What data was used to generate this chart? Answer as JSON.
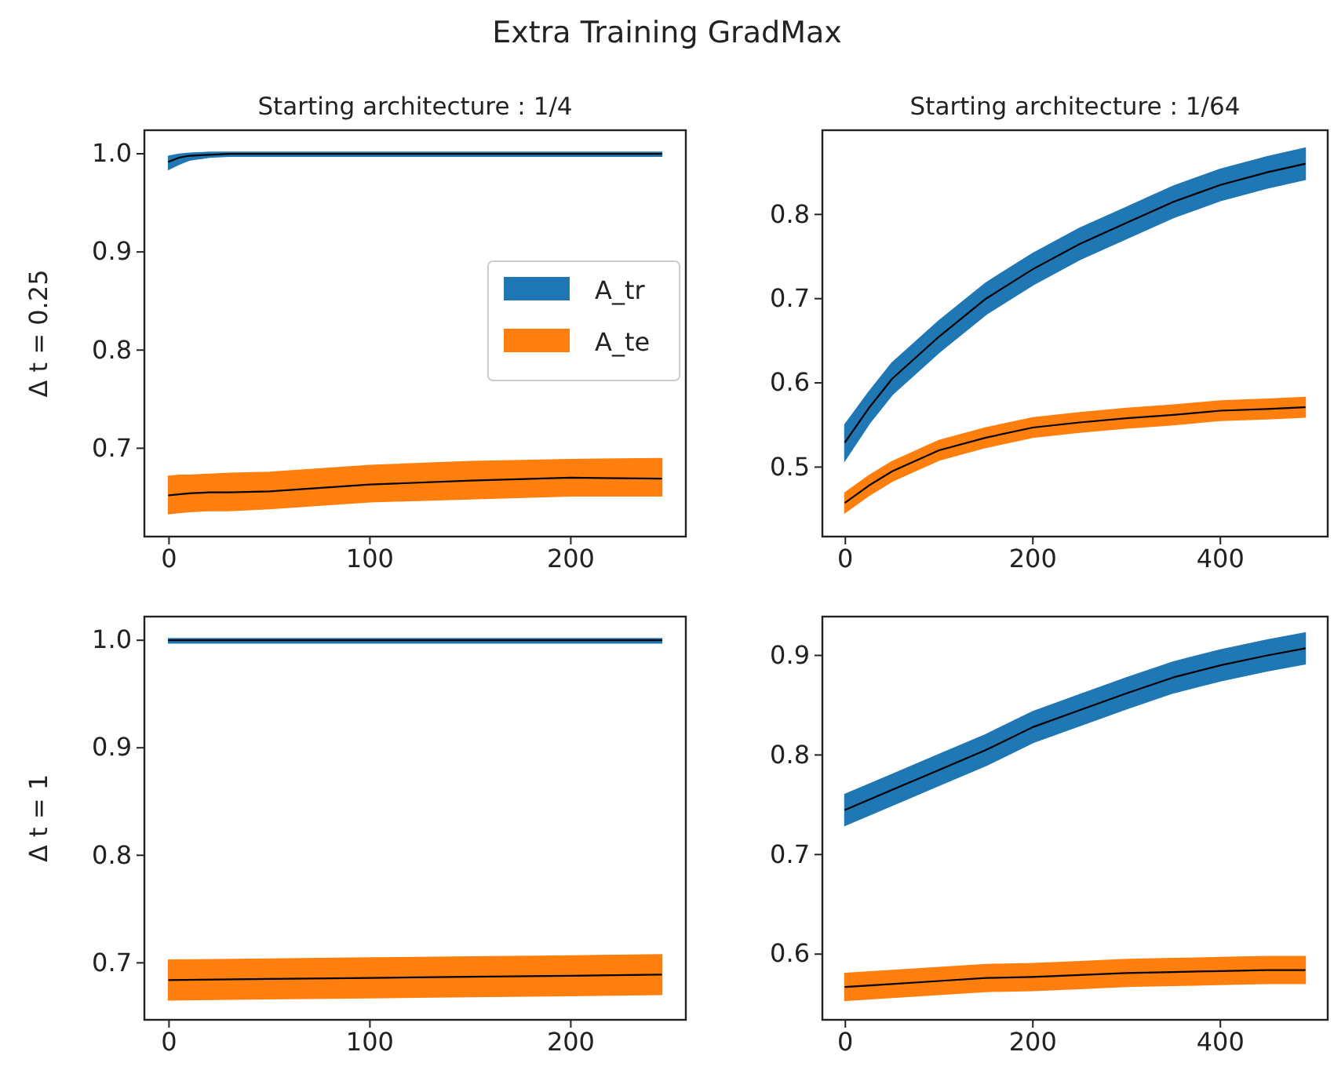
{
  "chart_data": [
    {
      "type": "line",
      "title": "Extra Training GradMax",
      "subtitle": "Starting architecture : 1/4",
      "ylabel": "Δ t = 0.25",
      "xlim": [
        -12.25,
        257.25
      ],
      "xticks": [
        0,
        100,
        200
      ],
      "ylim": [
        0.61,
        1.024
      ],
      "yticks": [
        {
          "value": 0.7,
          "label": "0.7"
        },
        {
          "value": 0.8,
          "label": "0.8"
        },
        {
          "value": 0.9,
          "label": "0.9"
        },
        {
          "value": 1.0,
          "label": "1.0"
        }
      ],
      "legend": "center right",
      "x": [
        0,
        5,
        10,
        20,
        30,
        50,
        100,
        150,
        200,
        245
      ],
      "series": [
        {
          "name": "A_tr",
          "color": "#1f77b4",
          "values": [
            null,
            null,
            null,
            null,
            null,
            null,
            null,
            null,
            null,
            null
          ],
          "lower": [
            0.985,
            0.99,
            0.994,
            0.997,
            0.998,
            0.998,
            0.998,
            0.998,
            0.998,
            0.998
          ],
          "upper": [
            0.997,
            0.999,
            1.0,
            1.001,
            1.001,
            1.001,
            1.001,
            1.001,
            1.001,
            1.001
          ]
        },
        {
          "name": "A_te",
          "color": "#ff7f0e",
          "values": [
            null,
            null,
            null,
            null,
            null,
            null,
            null,
            null,
            null,
            null
          ],
          "lower": [
            0.634,
            0.635,
            0.636,
            0.637,
            0.637,
            0.639,
            0.646,
            0.649,
            0.652,
            0.652
          ],
          "upper": [
            0.671,
            0.672,
            0.672,
            0.673,
            0.674,
            0.675,
            0.682,
            0.686,
            0.688,
            0.689
          ]
        },
        {
          "color": "#000000",
          "values": [
            0.992,
            0.996,
            0.998,
            0.999,
            1.0,
            1.0,
            1.0,
            1.0,
            1.0,
            1.0
          ]
        },
        {
          "color": "#000000",
          "values": [
            0.652,
            0.653,
            0.654,
            0.655,
            0.655,
            0.656,
            0.663,
            0.667,
            0.67,
            0.669
          ]
        }
      ]
    },
    {
      "type": "line",
      "subtitle": "Starting architecture : 1/64",
      "xlim": [
        -24.5,
        514.5
      ],
      "xticks": [
        0,
        200,
        400
      ],
      "ylim": [
        0.4175,
        0.9
      ],
      "yticks": [
        {
          "value": 0.5,
          "label": "0.5"
        },
        {
          "value": 0.6,
          "label": "0.6"
        },
        {
          "value": 0.7,
          "label": "0.7"
        },
        {
          "value": 0.8,
          "label": "0.8"
        }
      ],
      "x": [
        0,
        25,
        50,
        100,
        150,
        200,
        250,
        300,
        350,
        400,
        450,
        490
      ],
      "series": [
        {
          "color": "#1f77b4",
          "values": [
            null,
            null,
            null,
            null,
            null,
            null,
            null,
            null,
            null,
            null,
            null,
            null
          ],
          "lower": [
            0.51,
            0.552,
            0.587,
            0.637,
            0.682,
            0.717,
            0.747,
            0.772,
            0.797,
            0.817,
            0.832,
            0.842
          ],
          "upper": [
            0.55,
            0.588,
            0.623,
            0.673,
            0.718,
            0.753,
            0.783,
            0.808,
            0.833,
            0.853,
            0.868,
            0.878
          ]
        },
        {
          "color": "#ff7f0e",
          "values": [
            null,
            null,
            null,
            null,
            null,
            null,
            null,
            null,
            null,
            null,
            null,
            null
          ],
          "lower": [
            0.447,
            0.467,
            0.484,
            0.509,
            0.524,
            0.536,
            0.542,
            0.547,
            0.551,
            0.556,
            0.558,
            0.56
          ],
          "upper": [
            0.469,
            0.489,
            0.506,
            0.531,
            0.546,
            0.558,
            0.564,
            0.569,
            0.573,
            0.578,
            0.58,
            0.582
          ]
        },
        {
          "color": "#000000",
          "values": [
            0.53,
            0.57,
            0.605,
            0.655,
            0.7,
            0.735,
            0.765,
            0.79,
            0.815,
            0.835,
            0.85,
            0.86
          ]
        },
        {
          "color": "#000000",
          "values": [
            0.458,
            0.478,
            0.495,
            0.52,
            0.535,
            0.547,
            0.553,
            0.558,
            0.562,
            0.567,
            0.569,
            0.571
          ]
        }
      ]
    },
    {
      "type": "line",
      "ylabel": "Δ t = 1",
      "xlim": [
        -12.25,
        257.25
      ],
      "xticks": [
        0,
        100,
        200
      ],
      "ylim": [
        0.647,
        1.022
      ],
      "yticks": [
        {
          "value": 0.7,
          "label": "0.7"
        },
        {
          "value": 0.8,
          "label": "0.8"
        },
        {
          "value": 0.9,
          "label": "0.9"
        },
        {
          "value": 1.0,
          "label": "1.0"
        }
      ],
      "x": [
        0,
        50,
        100,
        150,
        200,
        245
      ],
      "series": [
        {
          "color": "#1f77b4",
          "values": [
            null,
            null,
            null,
            null,
            null,
            null
          ],
          "lower": [
            0.998,
            0.998,
            0.998,
            0.998,
            0.998,
            0.998
          ],
          "upper": [
            1.001,
            1.001,
            1.001,
            1.001,
            1.001,
            1.001
          ]
        },
        {
          "color": "#ff7f0e",
          "values": [
            null,
            null,
            null,
            null,
            null,
            null
          ],
          "lower": [
            0.666,
            0.667,
            0.668,
            0.669,
            0.67,
            0.671
          ],
          "upper": [
            0.702,
            0.703,
            0.704,
            0.705,
            0.706,
            0.707
          ]
        },
        {
          "color": "#000000",
          "values": [
            1.0,
            1.0,
            1.0,
            1.0,
            1.0,
            1.0
          ]
        },
        {
          "color": "#000000",
          "values": [
            0.684,
            0.685,
            0.686,
            0.687,
            0.688,
            0.689
          ]
        }
      ]
    },
    {
      "type": "line",
      "xlim": [
        -24.5,
        514.5
      ],
      "xticks": [
        0,
        200,
        400
      ],
      "ylim": [
        0.534,
        0.939
      ],
      "yticks": [
        {
          "value": 0.6,
          "label": "0.6"
        },
        {
          "value": 0.7,
          "label": "0.7"
        },
        {
          "value": 0.8,
          "label": "0.8"
        },
        {
          "value": 0.9,
          "label": "0.9"
        }
      ],
      "x": [
        0,
        50,
        100,
        150,
        200,
        250,
        300,
        350,
        400,
        450,
        490
      ],
      "series": [
        {
          "color": "#1f77b4",
          "values": [
            null,
            null,
            null,
            null,
            null,
            null,
            null,
            null,
            null,
            null,
            null
          ],
          "lower": [
            0.73,
            0.75,
            0.77,
            0.79,
            0.813,
            0.83,
            0.847,
            0.863,
            0.875,
            0.885,
            0.892
          ],
          "upper": [
            0.76,
            0.78,
            0.8,
            0.82,
            0.843,
            0.86,
            0.877,
            0.893,
            0.905,
            0.915,
            0.922
          ]
        },
        {
          "color": "#ff7f0e",
          "values": [
            null,
            null,
            null,
            null,
            null,
            null,
            null,
            null,
            null,
            null,
            null
          ],
          "lower": [
            0.554,
            0.557,
            0.56,
            0.563,
            0.564,
            0.566,
            0.568,
            0.569,
            0.57,
            0.571,
            0.571
          ],
          "upper": [
            0.58,
            0.583,
            0.586,
            0.589,
            0.59,
            0.592,
            0.594,
            0.595,
            0.596,
            0.597,
            0.597
          ]
        },
        {
          "color": "#000000",
          "values": [
            0.745,
            0.765,
            0.785,
            0.805,
            0.828,
            0.845,
            0.862,
            0.878,
            0.89,
            0.9,
            0.907
          ]
        },
        {
          "color": "#000000",
          "values": [
            0.567,
            0.57,
            0.573,
            0.576,
            0.577,
            0.579,
            0.581,
            0.582,
            0.583,
            0.584,
            0.584
          ]
        }
      ]
    }
  ]
}
